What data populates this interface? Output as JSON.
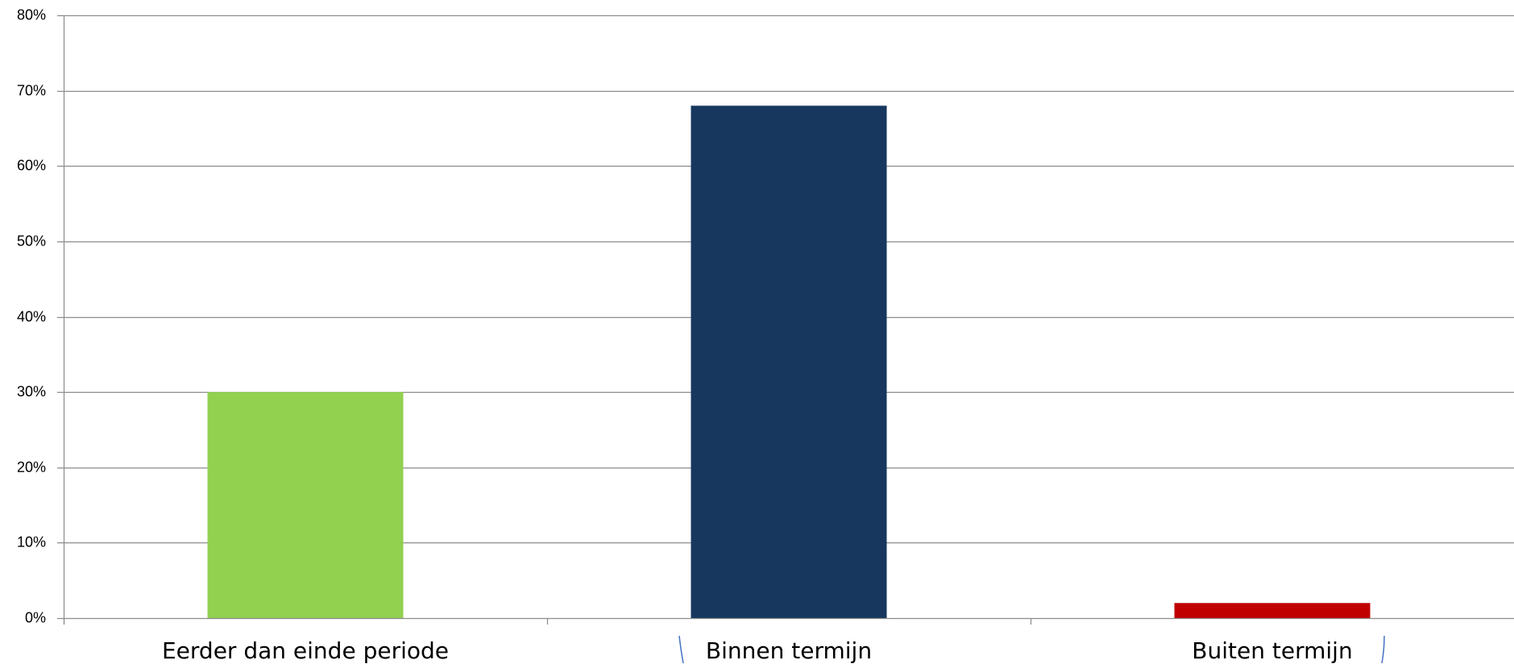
{
  "chart_data": {
    "type": "bar",
    "categories": [
      "Eerder dan einde periode",
      "Binnen termijn",
      "Buiten termijn"
    ],
    "values": [
      30,
      68,
      2
    ],
    "value_unit": "%",
    "colors": [
      "#92D050",
      "#17375E",
      "#C00000"
    ],
    "yticks": [
      "0%",
      "10%",
      "20%",
      "30%",
      "40%",
      "50%",
      "60%",
      "70%",
      "80%"
    ],
    "ylim": [
      0,
      80
    ],
    "grid": true,
    "legend": "none",
    "title": "",
    "xlabel": "",
    "ylabel": ""
  }
}
